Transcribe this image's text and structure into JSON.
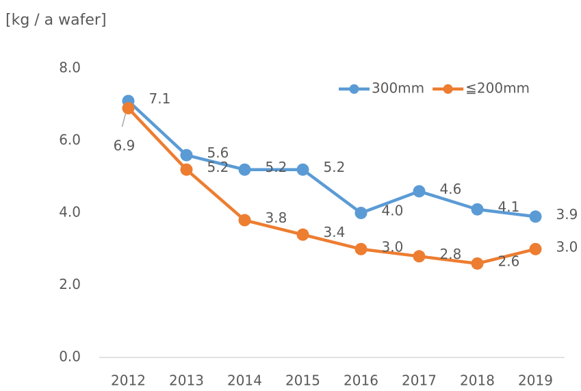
{
  "chart_data": {
    "type": "line",
    "y_label": "[kg / a wafer]",
    "categories": [
      "2012",
      "2013",
      "2014",
      "2015",
      "2016",
      "2017",
      "2018",
      "2019"
    ],
    "series": [
      {
        "name": "300mm",
        "color": "#5b9bd5",
        "values": [
          7.1,
          5.6,
          5.2,
          5.2,
          4.0,
          4.6,
          4.1,
          3.9
        ],
        "value_labels": [
          "7.1",
          "5.6",
          "5.2",
          "5.2",
          "4.0",
          "4.6",
          "4.1",
          "3.9"
        ]
      },
      {
        "name": "≦200mm",
        "color": "#ed7d31",
        "values": [
          6.9,
          5.2,
          3.8,
          3.4,
          3.0,
          2.8,
          2.6,
          3.0
        ],
        "value_labels": [
          "6.9",
          "5.2",
          "3.8",
          "3.4",
          "3.0",
          "2.8",
          "2.6",
          "3.0"
        ]
      }
    ],
    "ylim": [
      0,
      8
    ],
    "yticks": [
      {
        "value": 0,
        "label": "0.0"
      },
      {
        "value": 2,
        "label": "2.0"
      },
      {
        "value": 4,
        "label": "4.0"
      },
      {
        "value": 6,
        "label": "6.0"
      },
      {
        "value": 8,
        "label": "8.0"
      }
    ],
    "grid": false,
    "legend": "top-right"
  }
}
